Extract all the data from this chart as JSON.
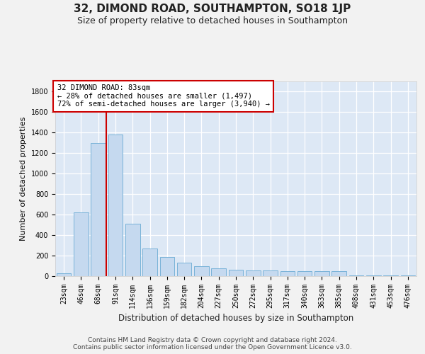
{
  "title": "32, DIMOND ROAD, SOUTHAMPTON, SO18 1JP",
  "subtitle": "Size of property relative to detached houses in Southampton",
  "xlabel": "Distribution of detached houses by size in Southampton",
  "ylabel": "Number of detached properties",
  "footer_line1": "Contains HM Land Registry data © Crown copyright and database right 2024.",
  "footer_line2": "Contains public sector information licensed under the Open Government Licence v3.0.",
  "categories": [
    "23sqm",
    "46sqm",
    "68sqm",
    "91sqm",
    "114sqm",
    "136sqm",
    "159sqm",
    "182sqm",
    "204sqm",
    "227sqm",
    "250sqm",
    "272sqm",
    "295sqm",
    "317sqm",
    "340sqm",
    "363sqm",
    "385sqm",
    "408sqm",
    "431sqm",
    "453sqm",
    "476sqm"
  ],
  "values": [
    30,
    620,
    1300,
    1380,
    510,
    270,
    190,
    130,
    100,
    75,
    60,
    55,
    55,
    45,
    45,
    45,
    45,
    10,
    10,
    10,
    10
  ],
  "bar_color": "#c5d9ef",
  "bar_edge_color": "#6aabd4",
  "annotation_line1": "32 DIMOND ROAD: 83sqm",
  "annotation_line2": "← 28% of detached houses are smaller (1,497)",
  "annotation_line3": "72% of semi-detached houses are larger (3,940) →",
  "vline_pos": 2.45,
  "vline_color": "#cc0000",
  "annotation_box_facecolor": "#ffffff",
  "annotation_box_edgecolor": "#cc0000",
  "ylim_max": 1900,
  "yticks": [
    0,
    200,
    400,
    600,
    800,
    1000,
    1200,
    1400,
    1600,
    1800
  ],
  "plot_bg_color": "#dde8f5",
  "grid_color": "#ffffff",
  "fig_bg_color": "#f2f2f2",
  "title_fontsize": 11,
  "subtitle_fontsize": 9,
  "ylabel_fontsize": 8,
  "xlabel_fontsize": 8.5,
  "tick_fontsize": 7,
  "annot_fontsize": 7.5,
  "footer_fontsize": 6.5
}
